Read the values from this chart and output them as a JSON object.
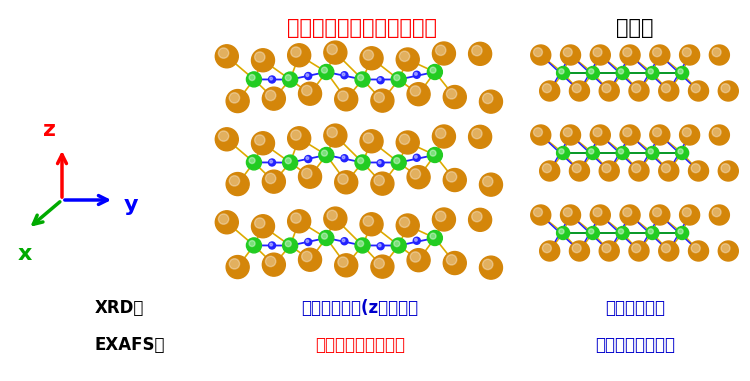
{
  "title_left": "本研究で見出した結晶状態",
  "title_right": "安定相",
  "title_left_color": "#ff0000",
  "title_right_color": "#000000",
  "xrd_label": "XRD：",
  "xrd_left_text": "長距離秩序有(z軸方向）",
  "xrd_right_text": "長距離秩序有",
  "xrd_color": "#0000cc",
  "exafs_label": "EXAFS：",
  "exafs_left_text": "ランダムな原子配列",
  "exafs_left_color": "#ff0000",
  "exafs_right_text": "規則的な原子配列",
  "exafs_right_color": "#0000cc",
  "label_color": "#000000",
  "axis_z_color": "#ff0000",
  "axis_y_color": "#0000ff",
  "axis_x_color": "#00aa00",
  "bg_color": "#ffffff",
  "fig_width": 7.5,
  "fig_height": 3.81,
  "dpi": 100,
  "orange": "#D4860A",
  "orange_shadow": "#a06000",
  "green_atom": "#22cc22",
  "blue_bond": "#2222ff",
  "yellow_bond": "#ddaa00",
  "green_bond": "#00aa00"
}
